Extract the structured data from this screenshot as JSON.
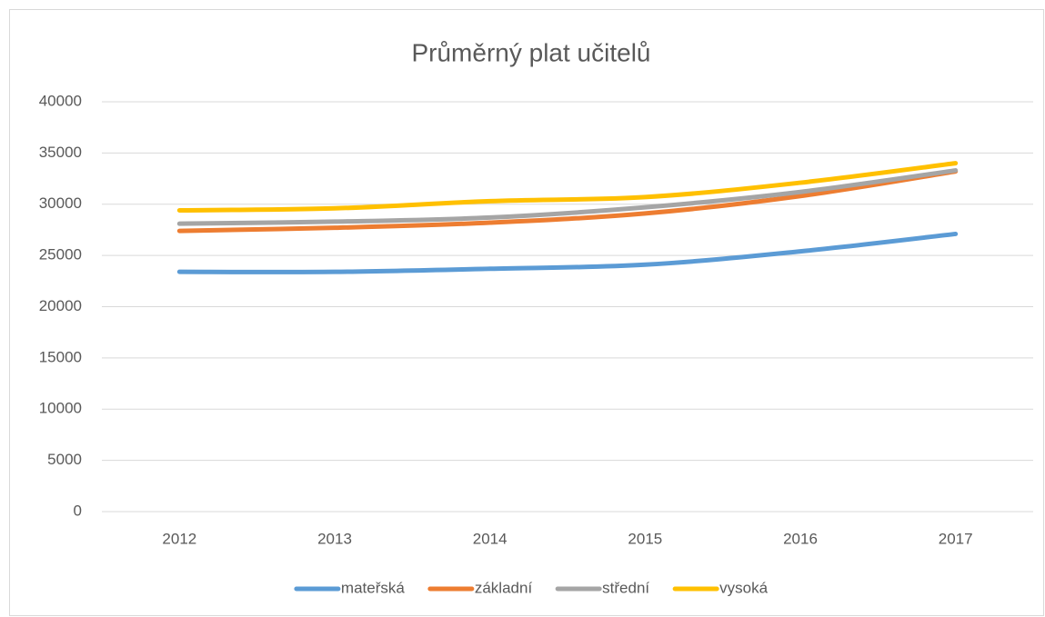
{
  "chart_data": {
    "type": "line",
    "title": "Průměrný plat učitelů",
    "categories": [
      "2012",
      "2013",
      "2014",
      "2015",
      "2016",
      "2017"
    ],
    "series": [
      {
        "name": "mateřská",
        "color": "#5b9bd5",
        "values": [
          23400,
          23400,
          23700,
          24100,
          25400,
          27100
        ]
      },
      {
        "name": "základní",
        "color": "#ed7d31",
        "values": [
          27400,
          27700,
          28200,
          29100,
          30800,
          33200
        ]
      },
      {
        "name": "střední",
        "color": "#a5a5a5",
        "values": [
          28100,
          28300,
          28700,
          29700,
          31200,
          33300
        ]
      },
      {
        "name": "vysoká",
        "color": "#ffc000",
        "values": [
          29400,
          29600,
          30300,
          30700,
          32100,
          34000
        ]
      }
    ],
    "ylim": [
      0,
      40000
    ],
    "yticks": [
      0,
      5000,
      10000,
      15000,
      20000,
      25000,
      30000,
      35000,
      40000
    ],
    "grid": true,
    "legend": "bottom"
  }
}
